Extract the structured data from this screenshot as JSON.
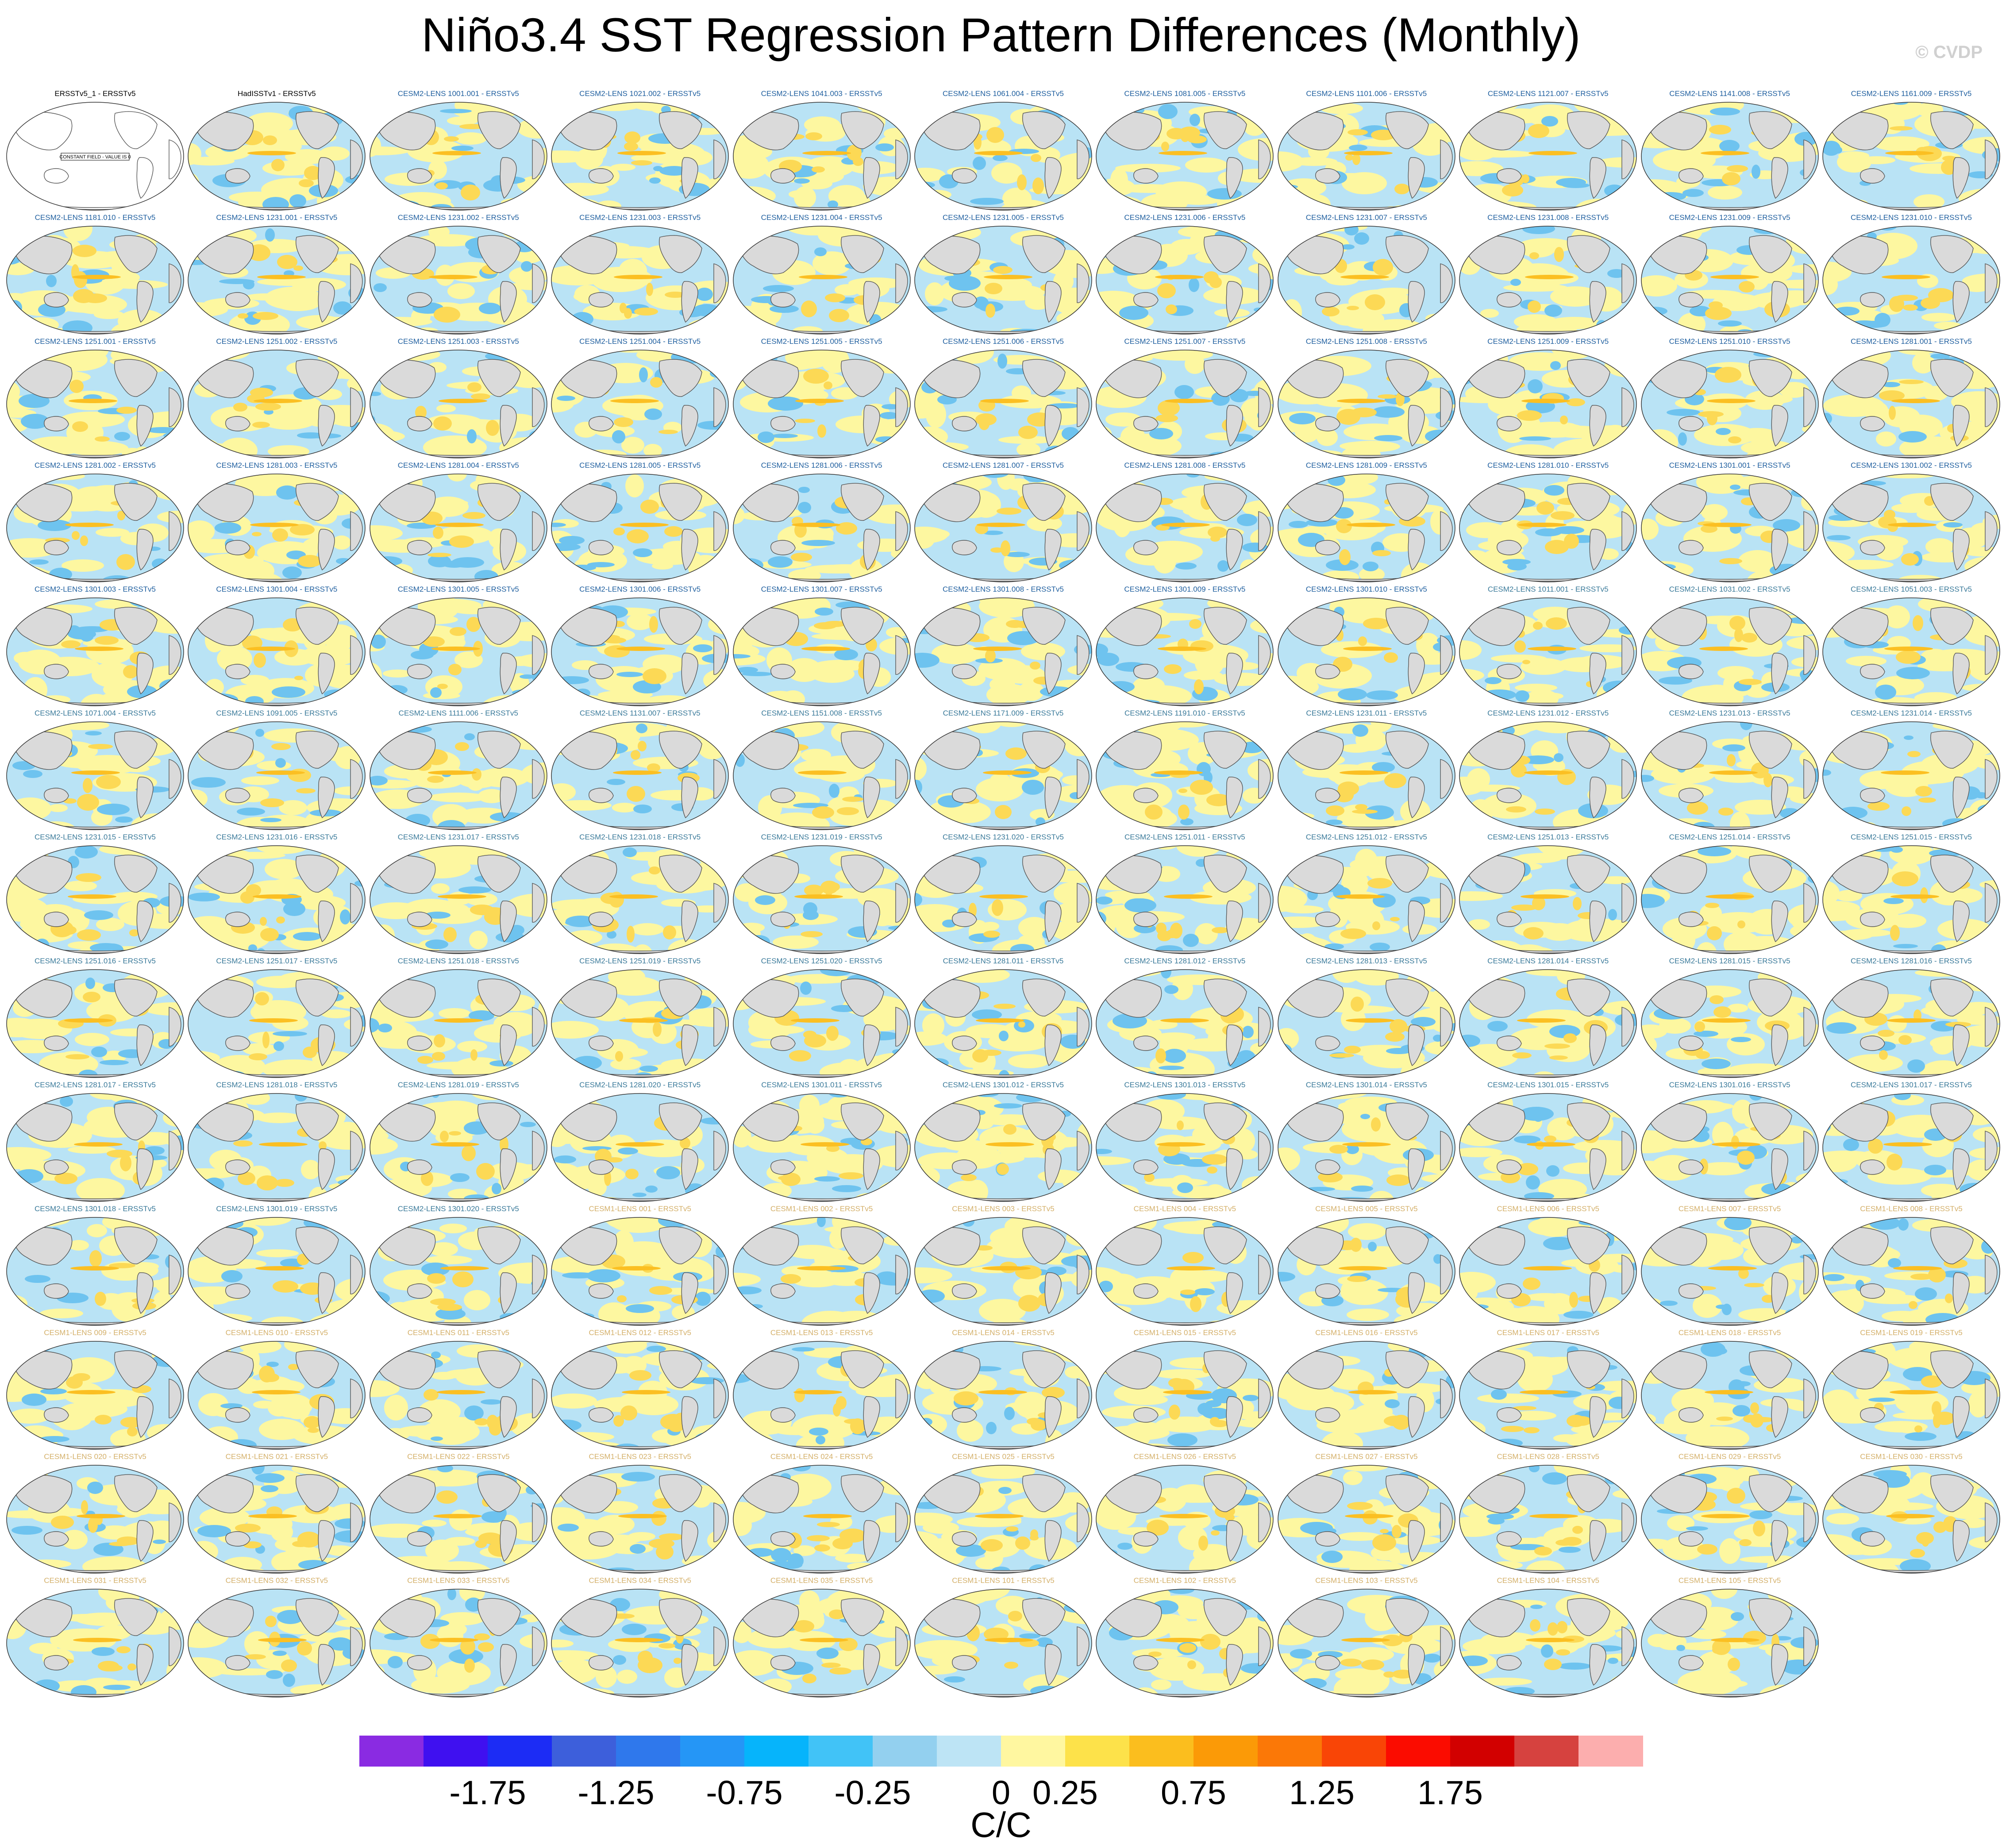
{
  "title": "Niño3.4 SST Regression Pattern Differences (Monthly)",
  "credit": "© CVDP",
  "panel_label_colors": {
    "obs": "#000000",
    "cesm2": "#1f5f9f",
    "cesm2_b": "#3a7a9a",
    "cesm1": "#d4b06a"
  },
  "map_colors": {
    "land": "#dadada",
    "coast": "#555555",
    "neg": "#b9e3f5",
    "neg2": "#6ec3ef",
    "pos": "#fdf7a0",
    "pos2": "#fcd955",
    "pos3": "#fbbf22"
  },
  "panels": [
    {
      "label": "ERSSTv5_1 - ERSSTv5",
      "group": "obs",
      "empty": true,
      "note": "CONSTANT FIELD - VALUE IS 0"
    },
    {
      "label": "HadISSTv1 - ERSSTv5",
      "group": "obs"
    },
    {
      "label": "CESM2-LENS 1001.001 - ERSSTv5",
      "group": "cesm2"
    },
    {
      "label": "CESM2-LENS 1021.002 - ERSSTv5",
      "group": "cesm2"
    },
    {
      "label": "CESM2-LENS 1041.003 - ERSSTv5",
      "group": "cesm2"
    },
    {
      "label": "CESM2-LENS 1061.004 - ERSSTv5",
      "group": "cesm2"
    },
    {
      "label": "CESM2-LENS 1081.005 - ERSSTv5",
      "group": "cesm2"
    },
    {
      "label": "CESM2-LENS 1101.006 - ERSSTv5",
      "group": "cesm2"
    },
    {
      "label": "CESM2-LENS 1121.007 - ERSSTv5",
      "group": "cesm2"
    },
    {
      "label": "CESM2-LENS 1141.008 - ERSSTv5",
      "group": "cesm2"
    },
    {
      "label": "CESM2-LENS 1161.009 - ERSSTv5",
      "group": "cesm2"
    },
    {
      "label": "CESM2-LENS 1181.010 - ERSSTv5",
      "group": "cesm2"
    },
    {
      "label": "CESM2-LENS 1231.001 - ERSSTv5",
      "group": "cesm2"
    },
    {
      "label": "CESM2-LENS 1231.002 - ERSSTv5",
      "group": "cesm2"
    },
    {
      "label": "CESM2-LENS 1231.003 - ERSSTv5",
      "group": "cesm2"
    },
    {
      "label": "CESM2-LENS 1231.004 - ERSSTv5",
      "group": "cesm2"
    },
    {
      "label": "CESM2-LENS 1231.005 - ERSSTv5",
      "group": "cesm2"
    },
    {
      "label": "CESM2-LENS 1231.006 - ERSSTv5",
      "group": "cesm2"
    },
    {
      "label": "CESM2-LENS 1231.007 - ERSSTv5",
      "group": "cesm2"
    },
    {
      "label": "CESM2-LENS 1231.008 - ERSSTv5",
      "group": "cesm2"
    },
    {
      "label": "CESM2-LENS 1231.009 - ERSSTv5",
      "group": "cesm2"
    },
    {
      "label": "CESM2-LENS 1231.010 - ERSSTv5",
      "group": "cesm2"
    },
    {
      "label": "CESM2-LENS 1251.001 - ERSSTv5",
      "group": "cesm2"
    },
    {
      "label": "CESM2-LENS 1251.002 - ERSSTv5",
      "group": "cesm2"
    },
    {
      "label": "CESM2-LENS 1251.003 - ERSSTv5",
      "group": "cesm2"
    },
    {
      "label": "CESM2-LENS 1251.004 - ERSSTv5",
      "group": "cesm2"
    },
    {
      "label": "CESM2-LENS 1251.005 - ERSSTv5",
      "group": "cesm2"
    },
    {
      "label": "CESM2-LENS 1251.006 - ERSSTv5",
      "group": "cesm2"
    },
    {
      "label": "CESM2-LENS 1251.007 - ERSSTv5",
      "group": "cesm2"
    },
    {
      "label": "CESM2-LENS 1251.008 - ERSSTv5",
      "group": "cesm2"
    },
    {
      "label": "CESM2-LENS 1251.009 - ERSSTv5",
      "group": "cesm2"
    },
    {
      "label": "CESM2-LENS 1251.010 - ERSSTv5",
      "group": "cesm2"
    },
    {
      "label": "CESM2-LENS 1281.001 - ERSSTv5",
      "group": "cesm2"
    },
    {
      "label": "CESM2-LENS 1281.002 - ERSSTv5",
      "group": "cesm2"
    },
    {
      "label": "CESM2-LENS 1281.003 - ERSSTv5",
      "group": "cesm2"
    },
    {
      "label": "CESM2-LENS 1281.004 - ERSSTv5",
      "group": "cesm2"
    },
    {
      "label": "CESM2-LENS 1281.005 - ERSSTv5",
      "group": "cesm2"
    },
    {
      "label": "CESM2-LENS 1281.006 - ERSSTv5",
      "group": "cesm2"
    },
    {
      "label": "CESM2-LENS 1281.007 - ERSSTv5",
      "group": "cesm2"
    },
    {
      "label": "CESM2-LENS 1281.008 - ERSSTv5",
      "group": "cesm2"
    },
    {
      "label": "CESM2-LENS 1281.009 - ERSSTv5",
      "group": "cesm2"
    },
    {
      "label": "CESM2-LENS 1281.010 - ERSSTv5",
      "group": "cesm2"
    },
    {
      "label": "CESM2-LENS 1301.001 - ERSSTv5",
      "group": "cesm2"
    },
    {
      "label": "CESM2-LENS 1301.002 - ERSSTv5",
      "group": "cesm2"
    },
    {
      "label": "CESM2-LENS 1301.003 - ERSSTv5",
      "group": "cesm2"
    },
    {
      "label": "CESM2-LENS 1301.004 - ERSSTv5",
      "group": "cesm2"
    },
    {
      "label": "CESM2-LENS 1301.005 - ERSSTv5",
      "group": "cesm2"
    },
    {
      "label": "CESM2-LENS 1301.006 - ERSSTv5",
      "group": "cesm2"
    },
    {
      "label": "CESM2-LENS 1301.007 - ERSSTv5",
      "group": "cesm2"
    },
    {
      "label": "CESM2-LENS 1301.008 - ERSSTv5",
      "group": "cesm2"
    },
    {
      "label": "CESM2-LENS 1301.009 - ERSSTv5",
      "group": "cesm2"
    },
    {
      "label": "CESM2-LENS 1301.010 - ERSSTv5",
      "group": "cesm2"
    },
    {
      "label": "CESM2-LENS 1011.001 - ERSSTv5",
      "group": "cesm2_b"
    },
    {
      "label": "CESM2-LENS 1031.002 - ERSSTv5",
      "group": "cesm2_b"
    },
    {
      "label": "CESM2-LENS 1051.003 - ERSSTv5",
      "group": "cesm2_b"
    },
    {
      "label": "CESM2-LENS 1071.004 - ERSSTv5",
      "group": "cesm2_b"
    },
    {
      "label": "CESM2-LENS 1091.005 - ERSSTv5",
      "group": "cesm2_b"
    },
    {
      "label": "CESM2-LENS 1111.006 - ERSSTv5",
      "group": "cesm2_b"
    },
    {
      "label": "CESM2-LENS 1131.007 - ERSSTv5",
      "group": "cesm2_b"
    },
    {
      "label": "CESM2-LENS 1151.008 - ERSSTv5",
      "group": "cesm2_b"
    },
    {
      "label": "CESM2-LENS 1171.009 - ERSSTv5",
      "group": "cesm2_b"
    },
    {
      "label": "CESM2-LENS 1191.010 - ERSSTv5",
      "group": "cesm2_b"
    },
    {
      "label": "CESM2-LENS 1231.011 - ERSSTv5",
      "group": "cesm2_b"
    },
    {
      "label": "CESM2-LENS 1231.012 - ERSSTv5",
      "group": "cesm2_b"
    },
    {
      "label": "CESM2-LENS 1231.013 - ERSSTv5",
      "group": "cesm2_b"
    },
    {
      "label": "CESM2-LENS 1231.014 - ERSSTv5",
      "group": "cesm2_b"
    },
    {
      "label": "CESM2-LENS 1231.015 - ERSSTv5",
      "group": "cesm2_b"
    },
    {
      "label": "CESM2-LENS 1231.016 - ERSSTv5",
      "group": "cesm2_b"
    },
    {
      "label": "CESM2-LENS 1231.017 - ERSSTv5",
      "group": "cesm2_b"
    },
    {
      "label": "CESM2-LENS 1231.018 - ERSSTv5",
      "group": "cesm2_b"
    },
    {
      "label": "CESM2-LENS 1231.019 - ERSSTv5",
      "group": "cesm2_b"
    },
    {
      "label": "CESM2-LENS 1231.020 - ERSSTv5",
      "group": "cesm2_b"
    },
    {
      "label": "CESM2-LENS 1251.011 - ERSSTv5",
      "group": "cesm2_b"
    },
    {
      "label": "CESM2-LENS 1251.012 - ERSSTv5",
      "group": "cesm2_b"
    },
    {
      "label": "CESM2-LENS 1251.013 - ERSSTv5",
      "group": "cesm2_b"
    },
    {
      "label": "CESM2-LENS 1251.014 - ERSSTv5",
      "group": "cesm2_b"
    },
    {
      "label": "CESM2-LENS 1251.015 - ERSSTv5",
      "group": "cesm2_b"
    },
    {
      "label": "CESM2-LENS 1251.016 - ERSSTv5",
      "group": "cesm2_b"
    },
    {
      "label": "CESM2-LENS 1251.017 - ERSSTv5",
      "group": "cesm2_b"
    },
    {
      "label": "CESM2-LENS 1251.018 - ERSSTv5",
      "group": "cesm2_b"
    },
    {
      "label": "CESM2-LENS 1251.019 - ERSSTv5",
      "group": "cesm2_b"
    },
    {
      "label": "CESM2-LENS 1251.020 - ERSSTv5",
      "group": "cesm2_b"
    },
    {
      "label": "CESM2-LENS 1281.011 - ERSSTv5",
      "group": "cesm2_b"
    },
    {
      "label": "CESM2-LENS 1281.012 - ERSSTv5",
      "group": "cesm2_b"
    },
    {
      "label": "CESM2-LENS 1281.013 - ERSSTv5",
      "group": "cesm2_b"
    },
    {
      "label": "CESM2-LENS 1281.014 - ERSSTv5",
      "group": "cesm2_b"
    },
    {
      "label": "CESM2-LENS 1281.015 - ERSSTv5",
      "group": "cesm2_b"
    },
    {
      "label": "CESM2-LENS 1281.016 - ERSSTv5",
      "group": "cesm2_b"
    },
    {
      "label": "CESM2-LENS 1281.017 - ERSSTv5",
      "group": "cesm2_b"
    },
    {
      "label": "CESM2-LENS 1281.018 - ERSSTv5",
      "group": "cesm2_b"
    },
    {
      "label": "CESM2-LENS 1281.019 - ERSSTv5",
      "group": "cesm2_b"
    },
    {
      "label": "CESM2-LENS 1281.020 - ERSSTv5",
      "group": "cesm2_b"
    },
    {
      "label": "CESM2-LENS 1301.011 - ERSSTv5",
      "group": "cesm2_b"
    },
    {
      "label": "CESM2-LENS 1301.012 - ERSSTv5",
      "group": "cesm2_b"
    },
    {
      "label": "CESM2-LENS 1301.013 - ERSSTv5",
      "group": "cesm2_b"
    },
    {
      "label": "CESM2-LENS 1301.014 - ERSSTv5",
      "group": "cesm2_b"
    },
    {
      "label": "CESM2-LENS 1301.015 - ERSSTv5",
      "group": "cesm2_b"
    },
    {
      "label": "CESM2-LENS 1301.016 - ERSSTv5",
      "group": "cesm2_b"
    },
    {
      "label": "CESM2-LENS 1301.017 - ERSSTv5",
      "group": "cesm2_b"
    },
    {
      "label": "CESM2-LENS 1301.018 - ERSSTv5",
      "group": "cesm2_b"
    },
    {
      "label": "CESM2-LENS 1301.019 - ERSSTv5",
      "group": "cesm2_b"
    },
    {
      "label": "CESM2-LENS 1301.020 - ERSSTv5",
      "group": "cesm2_b"
    },
    {
      "label": "CESM1-LENS 001 - ERSSTv5",
      "group": "cesm1"
    },
    {
      "label": "CESM1-LENS 002 - ERSSTv5",
      "group": "cesm1"
    },
    {
      "label": "CESM1-LENS 003 - ERSSTv5",
      "group": "cesm1"
    },
    {
      "label": "CESM1-LENS 004 - ERSSTv5",
      "group": "cesm1"
    },
    {
      "label": "CESM1-LENS 005 - ERSSTv5",
      "group": "cesm1"
    },
    {
      "label": "CESM1-LENS 006 - ERSSTv5",
      "group": "cesm1"
    },
    {
      "label": "CESM1-LENS 007 - ERSSTv5",
      "group": "cesm1"
    },
    {
      "label": "CESM1-LENS 008 - ERSSTv5",
      "group": "cesm1"
    },
    {
      "label": "CESM1-LENS 009 - ERSSTv5",
      "group": "cesm1"
    },
    {
      "label": "CESM1-LENS 010 - ERSSTv5",
      "group": "cesm1"
    },
    {
      "label": "CESM1-LENS 011 - ERSSTv5",
      "group": "cesm1"
    },
    {
      "label": "CESM1-LENS 012 - ERSSTv5",
      "group": "cesm1"
    },
    {
      "label": "CESM1-LENS 013 - ERSSTv5",
      "group": "cesm1"
    },
    {
      "label": "CESM1-LENS 014 - ERSSTv5",
      "group": "cesm1"
    },
    {
      "label": "CESM1-LENS 015 - ERSSTv5",
      "group": "cesm1"
    },
    {
      "label": "CESM1-LENS 016 - ERSSTv5",
      "group": "cesm1"
    },
    {
      "label": "CESM1-LENS 017 - ERSSTv5",
      "group": "cesm1"
    },
    {
      "label": "CESM1-LENS 018 - ERSSTv5",
      "group": "cesm1"
    },
    {
      "label": "CESM1-LENS 019 - ERSSTv5",
      "group": "cesm1"
    },
    {
      "label": "CESM1-LENS 020 - ERSSTv5",
      "group": "cesm1"
    },
    {
      "label": "CESM1-LENS 021 - ERSSTv5",
      "group": "cesm1"
    },
    {
      "label": "CESM1-LENS 022 - ERSSTv5",
      "group": "cesm1"
    },
    {
      "label": "CESM1-LENS 023 - ERSSTv5",
      "group": "cesm1"
    },
    {
      "label": "CESM1-LENS 024 - ERSSTv5",
      "group": "cesm1"
    },
    {
      "label": "CESM1-LENS 025 - ERSSTv5",
      "group": "cesm1"
    },
    {
      "label": "CESM1-LENS 026 - ERSSTv5",
      "group": "cesm1"
    },
    {
      "label": "CESM1-LENS 027 - ERSSTv5",
      "group": "cesm1"
    },
    {
      "label": "CESM1-LENS 028 - ERSSTv5",
      "group": "cesm1"
    },
    {
      "label": "CESM1-LENS 029 - ERSSTv5",
      "group": "cesm1"
    },
    {
      "label": "CESM1-LENS 030 - ERSSTv5",
      "group": "cesm1"
    },
    {
      "label": "CESM1-LENS 031 - ERSSTv5",
      "group": "cesm1"
    },
    {
      "label": "CESM1-LENS 032 - ERSSTv5",
      "group": "cesm1"
    },
    {
      "label": "CESM1-LENS 033 - ERSSTv5",
      "group": "cesm1"
    },
    {
      "label": "CESM1-LENS 034 - ERSSTv5",
      "group": "cesm1"
    },
    {
      "label": "CESM1-LENS 035 - ERSSTv5",
      "group": "cesm1"
    },
    {
      "label": "CESM1-LENS 101 - ERSSTv5",
      "group": "cesm1"
    },
    {
      "label": "CESM1-LENS 102 - ERSSTv5",
      "group": "cesm1"
    },
    {
      "label": "CESM1-LENS 103 - ERSSTv5",
      "group": "cesm1"
    },
    {
      "label": "CESM1-LENS 104 - ERSSTv5",
      "group": "cesm1"
    },
    {
      "label": "CESM1-LENS 105 - ERSSTv5",
      "group": "cesm1"
    }
  ],
  "colorbar": {
    "colors": [
      "#8a2be2",
      "#3f10f0",
      "#1c2cf5",
      "#3d5fdb",
      "#2f78ec",
      "#2596f6",
      "#06b4fb",
      "#41c3f7",
      "#93d0ef",
      "#bde4f5",
      "#fff7a0",
      "#fde24a",
      "#fbbe1e",
      "#fb9a07",
      "#fb7807",
      "#f94506",
      "#fb0c00",
      "#d20000",
      "#d6423f",
      "#fcaeae"
    ],
    "tick_labels": [
      "-1.75",
      "-1.25",
      "-0.75",
      "-0.25",
      "0",
      "0.25",
      "0.75",
      "1.25",
      "1.75"
    ],
    "tick_boundaries": [
      2,
      4,
      6,
      8,
      10,
      11,
      13,
      15,
      17
    ],
    "units": "C/C"
  }
}
